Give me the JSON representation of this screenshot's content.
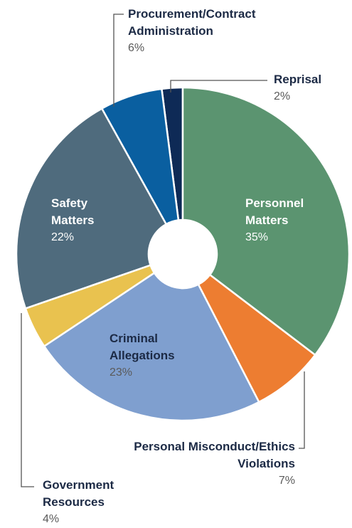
{
  "chart_data": {
    "type": "pie",
    "donut": true,
    "categories": [
      "Personnel Matters",
      "Personal Misconduct/Ethics Violations",
      "Criminal Allegations",
      "Government Resources",
      "Safety Matters",
      "Procurement/Contract Administration",
      "Reprisal"
    ],
    "values": [
      35,
      7,
      23,
      4,
      22,
      6,
      2
    ],
    "value_labels": [
      "35%",
      "7%",
      "23%",
      "4%",
      "22%",
      "6%",
      "2%"
    ],
    "colors": [
      "#5b9470",
      "#ed7d31",
      "#7f9fcf",
      "#e9c24f",
      "#4f6b7d",
      "#0a5fa0",
      "#0e2a56"
    ]
  }
}
